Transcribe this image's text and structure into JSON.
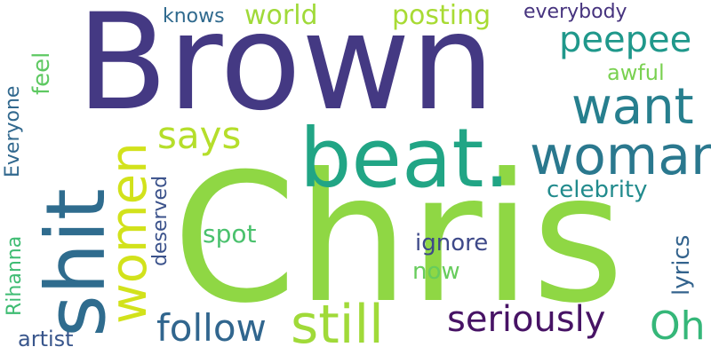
{
  "words": {
    "brown": {
      "text": "Brown",
      "color": "#443983"
    },
    "chris": {
      "text": "Chris",
      "color": "#8fd744"
    },
    "beat": {
      "text": "beat.",
      "color": "#21a585"
    },
    "shit": {
      "text": "shit",
      "color": "#2f6c8e"
    },
    "woman": {
      "text": "woman",
      "color": "#2a788e"
    },
    "want": {
      "text": "want",
      "color": "#277f8e"
    },
    "women": {
      "text": "women",
      "color": "#d2e21b"
    },
    "still": {
      "text": "still",
      "color": "#a0da39"
    },
    "says": {
      "text": "says",
      "color": "#b5de2b"
    },
    "peepee": {
      "text": "peepee",
      "color": "#1f988b"
    },
    "seriously": {
      "text": "seriously",
      "color": "#471365"
    },
    "follow": {
      "text": "follow",
      "color": "#31668e"
    },
    "oh": {
      "text": "Oh",
      "color": "#35b779"
    },
    "posting": {
      "text": "posting",
      "color": "#a8db34"
    },
    "world": {
      "text": "world",
      "color": "#a0da39"
    },
    "knows": {
      "text": "knows",
      "color": "#306a8e"
    },
    "everybody": {
      "text": "everybody",
      "color": "#46337e"
    },
    "awful": {
      "text": "awful",
      "color": "#7ad151"
    },
    "feel": {
      "text": "feel",
      "color": "#5ec962"
    },
    "everyone": {
      "text": "Everyone",
      "color": "#31688e"
    },
    "celebrity": {
      "text": "celebrity",
      "color": "#228b8d"
    },
    "deserved": {
      "text": "deserved",
      "color": "#3b528b"
    },
    "spot": {
      "text": "spot",
      "color": "#4ac16d"
    },
    "ignore": {
      "text": "ignore",
      "color": "#3e4989"
    },
    "now": {
      "text": "now",
      "color": "#67cc5c"
    },
    "lyrics": {
      "text": "lyrics",
      "color": "#33638d"
    },
    "rihanna": {
      "text": "Rihanna",
      "color": "#3fbc73"
    },
    "artist": {
      "text": "artist",
      "color": "#39568c"
    }
  }
}
